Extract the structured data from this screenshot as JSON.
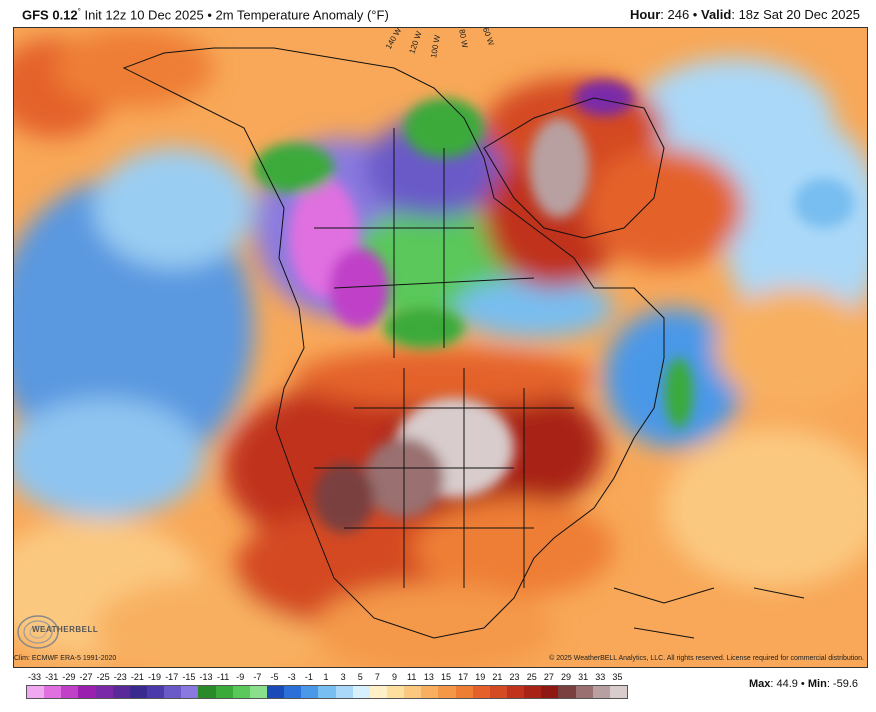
{
  "header": {
    "model": "GFS 0.12",
    "degree": "°",
    "init": " Init 12z 10 Dec 2025 • 2m Temperature Anomaly (°F)",
    "hour_label": "Hour",
    "hour_value": ": 246 • ",
    "valid_label": "Valid",
    "valid_value": ": 18z Sat 20 Dec 2025"
  },
  "map": {
    "region": "North America",
    "contour_labels": [
      "140 W",
      "120 W",
      "100 W",
      "80 W",
      "60 W"
    ]
  },
  "logo": {
    "text": "WEATHERBELL"
  },
  "footer": {
    "clim": "Clim: ECMWF ERA-5 1991-2020",
    "copyright": "© 2025 WeatherBELL Analytics, LLC. All rights reserved. License required for commercial distribution."
  },
  "legend": {
    "ticks": [
      "-33",
      "-31",
      "-29",
      "-27",
      "-25",
      "-23",
      "-21",
      "-19",
      "-17",
      "-15",
      "-13",
      "-11",
      "-9",
      "-7",
      "-5",
      "-3",
      "-1",
      "1",
      "3",
      "5",
      "7",
      "9",
      "11",
      "13",
      "15",
      "17",
      "19",
      "21",
      "23",
      "25",
      "27",
      "29",
      "31",
      "33",
      "35"
    ],
    "colors": [
      "#f0a8f0",
      "#e070e0",
      "#c040c8",
      "#9a20b0",
      "#7a2aa8",
      "#5a2a9a",
      "#3a2a90",
      "#4a3aaa",
      "#6a5ac8",
      "#8a7ae0",
      "#2a8a2a",
      "#3aaa3a",
      "#5ac85a",
      "#8ae08a",
      "#1a4ab8",
      "#2a70d8",
      "#4a98e8",
      "#78bef0",
      "#aad8f8",
      "#d8f0fc",
      "#fff0c8",
      "#fde0a0",
      "#fbc880",
      "#f8b060",
      "#f49848",
      "#ee7e34",
      "#e4622a",
      "#d44a22",
      "#c0321c",
      "#a82216",
      "#901812",
      "#7a4040",
      "#9a7070",
      "#b8a0a0",
      "#d8cccc"
    ]
  },
  "maxmin": {
    "max_label": "Max",
    "max_value": ": 44.9 • ",
    "min_label": "Min",
    "min_value": ": -59.6"
  }
}
